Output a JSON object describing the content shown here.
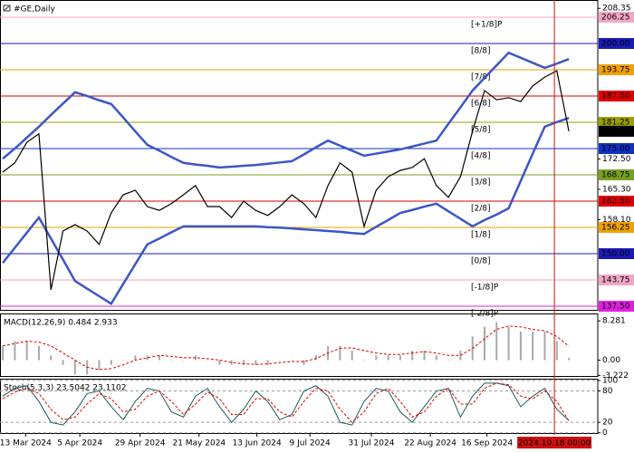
{
  "chart_data": [
    {
      "type": "line",
      "title": "#GE,Daily",
      "xlim": [
        -0.23,
        49.4
      ],
      "xticks": [
        {
          "value": 1.9,
          "label": "13 Mar 2024"
        },
        {
          "value": 6.4,
          "label": "5 Apr 2024"
        },
        {
          "value": 11.4,
          "label": "29 Apr 2024"
        },
        {
          "value": 16.3,
          "label": "21 May 2024"
        },
        {
          "value": 21.1,
          "label": "13 Jun 2024"
        },
        {
          "value": 25.5,
          "label": "9 Jul 2024"
        },
        {
          "value": 30.6,
          "label": "31 Jul 2024"
        },
        {
          "value": 35.5,
          "label": "22 Aug 2024"
        },
        {
          "value": 40.2,
          "label": "16 Sep 2024"
        }
      ],
      "cursor": {
        "value": 45.8,
        "label": "2024.10.18 00:00",
        "color": "#d01010"
      },
      "ylim": [
        136.64,
        210.34
      ],
      "yticks": [
        208.35,
        {
          "value": 172.5,
          "label": "172.50"
        },
        {
          "value": 165.3,
          "label": "165.30"
        },
        {
          "value": 158.1,
          "label": "158.10"
        }
      ],
      "last": 179.11,
      "levels": [
        {
          "name": "[+1/8]P",
          "value": 206.25,
          "label": "206.25",
          "color": "#f4a6c6"
        },
        {
          "name": "[8/8]",
          "value": 200,
          "label": "200.00",
          "color": "#1a1ab4"
        },
        {
          "name": "[7/8]",
          "value": 193.75,
          "label": "193.75",
          "color": "#f0a000"
        },
        {
          "name": "[6/8]",
          "value": 187.5,
          "label": "187.50",
          "color": "#e00000"
        },
        {
          "name": "[5/8]",
          "value": 181.25,
          "label": "181.25",
          "color": "#9aa000"
        },
        {
          "name": "[4/8]",
          "value": 175,
          "label": "175.00",
          "color": "#1030c0"
        },
        {
          "name": "[3/8]",
          "value": 168.75,
          "label": "168.75",
          "color": "#7aa020"
        },
        {
          "name": "[2/8]",
          "value": 162.5,
          "label": "162.50",
          "color": "#e00000"
        },
        {
          "name": "[1/8]",
          "value": 156.25,
          "label": "156.25",
          "color": "#f0a000"
        },
        {
          "name": "[0/8]",
          "value": 150,
          "label": "150.00",
          "color": "#1a1ab4"
        },
        {
          "name": "[-1/8]P",
          "value": 143.75,
          "label": "143.75",
          "color": "#f4a6c6"
        },
        {
          "name": "[-2/8]P",
          "value": 137.5,
          "label": "137.50",
          "color": "#e020e0"
        }
      ],
      "series": [
        {
          "color": "#3a56c8",
          "width": 2.5,
          "values": [
            172.6,
            175,
            177.6,
            180.2,
            183,
            185.7,
            188.4,
            187.5,
            186.5,
            185.6,
            182.4,
            179.1,
            175.9,
            174.5,
            173,
            171.6,
            171.2,
            170.9,
            170.5,
            170.7,
            170.9,
            171.1,
            171.4,
            171.7,
            172,
            173.6,
            175.3,
            176.9,
            175.7,
            174.5,
            173.3,
            173.8,
            174.3,
            174.8,
            175.5,
            176.2,
            176.9,
            180.9,
            184.8,
            188.8,
            191.8,
            194.8,
            197.8,
            196.6,
            195.4,
            194.2,
            195.2,
            196.3
          ]
        },
        {
          "color": "#3a56c8",
          "width": 2.5,
          "values": [
            147.8,
            151.4,
            155,
            158.6,
            153.6,
            148.6,
            143.5,
            141.7,
            139.9,
            138.1,
            142.8,
            147.5,
            152.2,
            153.6,
            155.1,
            156.5,
            156.5,
            156.5,
            156.5,
            156.5,
            156.5,
            156.5,
            156.3,
            156.2,
            156,
            155.8,
            155.6,
            155.4,
            155.2,
            154.9,
            154.7,
            156.4,
            158,
            159.7,
            160.4,
            161.2,
            161.9,
            160.1,
            158.3,
            156.5,
            158,
            159.3,
            160.8,
            167.3,
            173.8,
            180.2,
            181.3,
            182.3
          ]
        },
        {
          "color": "#000000",
          "width": 1.2,
          "values": [
            169.4,
            171.6,
            176.5,
            178.5,
            141.4,
            155.4,
            156.9,
            155.4,
            152.2,
            159.7,
            164,
            165.1,
            161.2,
            160.3,
            161.9,
            164,
            166.2,
            161.2,
            161.2,
            158.6,
            162.5,
            160.3,
            159.1,
            161.2,
            164,
            161.9,
            158.6,
            166.2,
            171.6,
            169.4,
            156.5,
            165.1,
            168.3,
            169.8,
            170.5,
            172.6,
            166.2,
            163.4,
            168.3,
            179.1,
            188.8,
            186.6,
            187.1,
            186.2,
            189.9,
            192,
            193.5,
            179.11
          ]
        }
      ]
    },
    {
      "type": "bar",
      "title": "MACD(12,26,9) 0.484 2.933",
      "ylim": [
        -3.35,
        9.66
      ],
      "yticks": [
        8.281,
        {
          "value": 0,
          "label": "0.00"
        },
        -3.222
      ],
      "series": [
        {
          "color": "#a8a8a8",
          "values": [
            3,
            4,
            4,
            3,
            1,
            -1,
            -3,
            -3,
            -2,
            -1,
            0,
            1,
            1,
            1,
            0,
            0,
            1,
            0,
            -1,
            -1,
            -1,
            -1,
            -1,
            0,
            0,
            -1,
            1,
            3,
            3,
            2,
            0,
            1,
            1,
            1,
            2,
            2,
            1,
            0,
            2,
            5,
            7,
            8,
            7,
            6,
            6,
            6,
            4,
            0.484
          ]
        },
        {
          "color": "#e00000",
          "dash": true,
          "values": [
            3,
            3.5,
            4,
            3.8,
            3,
            1.5,
            0,
            -1.5,
            -2,
            -1.8,
            -1,
            0,
            0.5,
            1,
            0.8,
            0.5,
            0.5,
            0.3,
            0,
            -0.5,
            -0.8,
            -0.9,
            -0.8,
            -0.5,
            -0.3,
            -0.3,
            0.3,
            1.5,
            2.5,
            2.6,
            2,
            1.5,
            1.2,
            1.2,
            1.5,
            1.8,
            1.5,
            1,
            1,
            2.5,
            4.5,
            6.5,
            7.2,
            7,
            6.5,
            6.2,
            5,
            2.933
          ]
        }
      ]
    },
    {
      "type": "line",
      "title": "Stoch(5,3,3) 23.5042 23.1102",
      "ylim": [
        -0.5,
        101.7
      ],
      "yticks": [
        100,
        80,
        20,
        0
      ],
      "grid": true,
      "series": [
        {
          "color": "#1a5a5a",
          "values": [
            70,
            85,
            90,
            60,
            20,
            15,
            40,
            75,
            80,
            50,
            25,
            60,
            85,
            80,
            40,
            30,
            70,
            85,
            50,
            20,
            45,
            80,
            60,
            25,
            35,
            80,
            90,
            70,
            20,
            15,
            60,
            85,
            80,
            40,
            20,
            50,
            80,
            85,
            30,
            70,
            95,
            95,
            90,
            50,
            70,
            85,
            45,
            23.5042
          ]
        },
        {
          "color": "#e00000",
          "dash": true,
          "values": [
            65,
            78,
            85,
            75,
            45,
            25,
            30,
            55,
            75,
            65,
            40,
            45,
            70,
            80,
            60,
            35,
            55,
            78,
            65,
            35,
            35,
            65,
            65,
            40,
            30,
            60,
            85,
            80,
            45,
            20,
            40,
            75,
            85,
            60,
            30,
            40,
            70,
            85,
            55,
            55,
            85,
            95,
            92,
            70,
            65,
            80,
            60,
            23.1102
          ]
        }
      ]
    }
  ]
}
